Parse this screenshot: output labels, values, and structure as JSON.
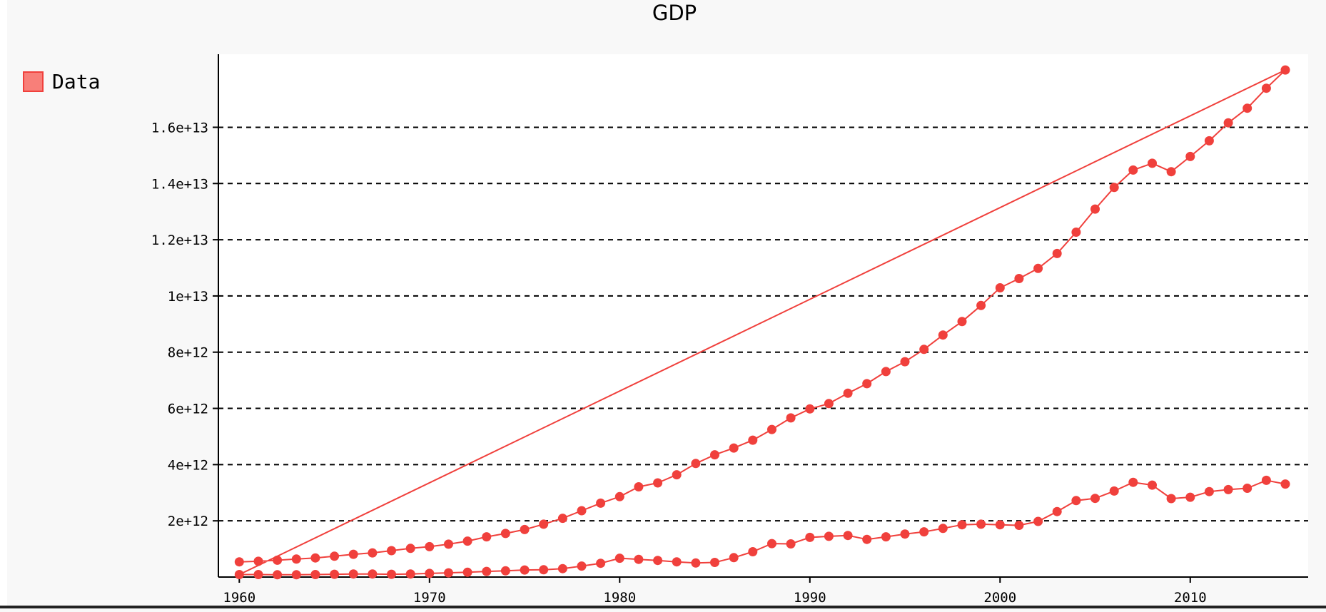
{
  "chart_data": {
    "type": "line",
    "title": "GDP",
    "xlabel": "",
    "ylabel": "",
    "legend": {
      "position": "top-left",
      "entries": [
        "Data"
      ]
    },
    "grid": {
      "horizontal": true,
      "vertical": false,
      "style": "dashed"
    },
    "xlim": [
      1958.9,
      2016.2
    ],
    "ylim": [
      0,
      18600000000000.0
    ],
    "x_ticks": [
      1960,
      1970,
      1980,
      1990,
      2000,
      2010
    ],
    "x_tick_labels": [
      "1960",
      "1970",
      "1980",
      "1990",
      "2000",
      "2010"
    ],
    "y_ticks": [
      2000000000000.0,
      4000000000000.0,
      6000000000000.0,
      8000000000000.0,
      10000000000000.0,
      12000000000000.0,
      14000000000000.0,
      16000000000000.0
    ],
    "y_tick_labels": [
      "2e+12",
      "4e+12",
      "6e+12",
      "8e+12",
      "1e+13",
      "1.2e+13",
      "1.4e+13",
      "1.6e+13"
    ],
    "color": "#f0403c",
    "series": [
      {
        "name": "Data",
        "points": [
          [
            1960,
            540000000000.0
          ],
          [
            1961,
            560000000000.0
          ],
          [
            1962,
            600000000000.0
          ],
          [
            1963,
            640000000000.0
          ],
          [
            1964,
            680000000000.0
          ],
          [
            1965,
            740000000000.0
          ],
          [
            1966,
            810000000000.0
          ],
          [
            1967,
            860000000000.0
          ],
          [
            1968,
            940000000000.0
          ],
          [
            1969,
            1020000000000.0
          ],
          [
            1970,
            1080000000000.0
          ],
          [
            1971,
            1170000000000.0
          ],
          [
            1972,
            1280000000000.0
          ],
          [
            1973,
            1430000000000.0
          ],
          [
            1974,
            1550000000000.0
          ],
          [
            1975,
            1690000000000.0
          ],
          [
            1976,
            1880000000000.0
          ],
          [
            1977,
            2090000000000.0
          ],
          [
            1978,
            2360000000000.0
          ],
          [
            1979,
            2630000000000.0
          ],
          [
            1980,
            2860000000000.0
          ],
          [
            1981,
            3210000000000.0
          ],
          [
            1982,
            3350000000000.0
          ],
          [
            1983,
            3640000000000.0
          ],
          [
            1984,
            4040000000000.0
          ],
          [
            1985,
            4350000000000.0
          ],
          [
            1986,
            4590000000000.0
          ],
          [
            1987,
            4870000000000.0
          ],
          [
            1988,
            5250000000000.0
          ],
          [
            1989,
            5660000000000.0
          ],
          [
            1990,
            5980000000000.0
          ],
          [
            1991,
            6170000000000.0
          ],
          [
            1992,
            6540000000000.0
          ],
          [
            1993,
            6880000000000.0
          ],
          [
            1994,
            7310000000000.0
          ],
          [
            1995,
            7660000000000.0
          ],
          [
            1996,
            8100000000000.0
          ],
          [
            1997,
            8610000000000.0
          ],
          [
            1998,
            9090000000000.0
          ],
          [
            1999,
            9660000000000.0
          ],
          [
            2000,
            10290000000000.0
          ],
          [
            2001,
            10620000000000.0
          ],
          [
            2002,
            10980000000000.0
          ],
          [
            2003,
            11510000000000.0
          ],
          [
            2004,
            12270000000000.0
          ],
          [
            2005,
            13090000000000.0
          ],
          [
            2006,
            13860000000000.0
          ],
          [
            2007,
            14480000000000.0
          ],
          [
            2008,
            14720000000000.0
          ],
          [
            2009,
            14420000000000.0
          ],
          [
            2010,
            14960000000000.0
          ],
          [
            2011,
            15520000000000.0
          ],
          [
            2012,
            16160000000000.0
          ],
          [
            2013,
            16680000000000.0
          ],
          [
            2014,
            17390000000000.0
          ],
          [
            2015,
            18040000000000.0
          ],
          [
            1960,
            90000000000.0
          ],
          [
            1961,
            90000000000.0
          ],
          [
            1962,
            80000000000.0
          ],
          [
            1963,
            80000000000.0
          ],
          [
            1964,
            90000000000.0
          ],
          [
            1965,
            100000000000.0
          ],
          [
            1966,
            110000000000.0
          ],
          [
            1967,
            110000000000.0
          ],
          [
            1968,
            100000000000.0
          ],
          [
            1969,
            110000000000.0
          ],
          [
            1970,
            130000000000.0
          ],
          [
            1971,
            150000000000.0
          ],
          [
            1972,
            170000000000.0
          ],
          [
            1973,
            200000000000.0
          ],
          [
            1974,
            220000000000.0
          ],
          [
            1975,
            250000000000.0
          ],
          [
            1976,
            260000000000.0
          ],
          [
            1977,
            300000000000.0
          ],
          [
            1978,
            390000000000.0
          ],
          [
            1979,
            490000000000.0
          ],
          [
            1980,
            670000000000.0
          ],
          [
            1981,
            630000000000.0
          ],
          [
            1982,
            590000000000.0
          ],
          [
            1983,
            540000000000.0
          ],
          [
            1984,
            500000000000.0
          ],
          [
            1985,
            520000000000.0
          ],
          [
            1986,
            690000000000.0
          ],
          [
            1987,
            900000000000.0
          ],
          [
            1988,
            1190000000000.0
          ],
          [
            1989,
            1180000000000.0
          ],
          [
            1990,
            1410000000000.0
          ],
          [
            1991,
            1450000000000.0
          ],
          [
            1992,
            1480000000000.0
          ],
          [
            1993,
            1340000000000.0
          ],
          [
            1994,
            1430000000000.0
          ],
          [
            1995,
            1530000000000.0
          ],
          [
            1996,
            1610000000000.0
          ],
          [
            1997,
            1730000000000.0
          ],
          [
            1998,
            1860000000000.0
          ],
          [
            1999,
            1880000000000.0
          ],
          [
            2000,
            1860000000000.0
          ],
          [
            2001,
            1840000000000.0
          ],
          [
            2002,
            1980000000000.0
          ],
          [
            2003,
            2330000000000.0
          ],
          [
            2004,
            2720000000000.0
          ],
          [
            2005,
            2800000000000.0
          ],
          [
            2006,
            3060000000000.0
          ],
          [
            2007,
            3370000000000.0
          ],
          [
            2008,
            3270000000000.0
          ],
          [
            2009,
            2790000000000.0
          ],
          [
            2010,
            2840000000000.0
          ],
          [
            2011,
            3040000000000.0
          ],
          [
            2012,
            3110000000000.0
          ],
          [
            2013,
            3160000000000.0
          ],
          [
            2014,
            3440000000000.0
          ],
          [
            2015,
            3310000000000.0
          ]
        ]
      }
    ]
  }
}
